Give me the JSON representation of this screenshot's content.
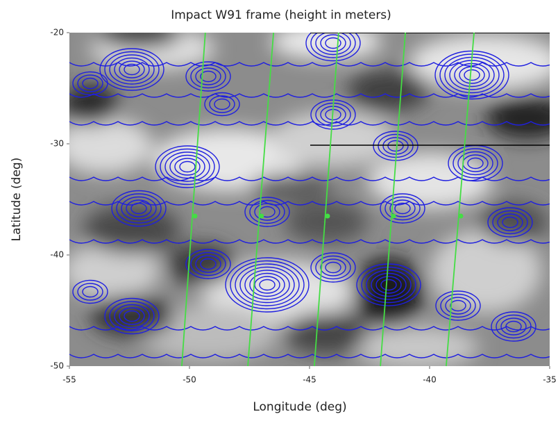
{
  "chart_data": {
    "type": "contour",
    "title": "Impact W91 frame (height in meters)",
    "x_label": "Longitude (deg)",
    "y_label": "Latitude (deg)",
    "xlim": [
      -55,
      -35
    ],
    "ylim": [
      -50,
      -20
    ],
    "xticks": [
      -55,
      -50,
      -45,
      -40,
      -35
    ],
    "yticks": [
      -20,
      -30,
      -40,
      -50
    ],
    "contour_color": "#1f1fe0",
    "series": [
      {
        "color": "#44dd44",
        "x": [
          -50.32,
          -49.34
        ],
        "y": [
          -50,
          -20
        ]
      },
      {
        "color": "#44dd44",
        "x": [
          -47.57,
          -46.5
        ],
        "y": [
          -50,
          -20
        ]
      },
      {
        "color": "#44dd44",
        "x": [
          -44.8,
          -43.79
        ],
        "y": [
          -50,
          -20
        ]
      },
      {
        "color": "#44dd44",
        "x": [
          -42.05,
          -41.01
        ],
        "y": [
          -50,
          -20
        ]
      },
      {
        "color": "#44dd44",
        "x": [
          -39.31,
          -38.15
        ],
        "y": [
          -50,
          -20
        ]
      }
    ],
    "points": {
      "color": "#44dd44",
      "x": [
        -49.77,
        -47.0,
        -44.25,
        -41.5,
        -38.7
      ],
      "y": [
        -36.5,
        -36.5,
        -36.5,
        -36.5,
        -36.5
      ]
    }
  }
}
